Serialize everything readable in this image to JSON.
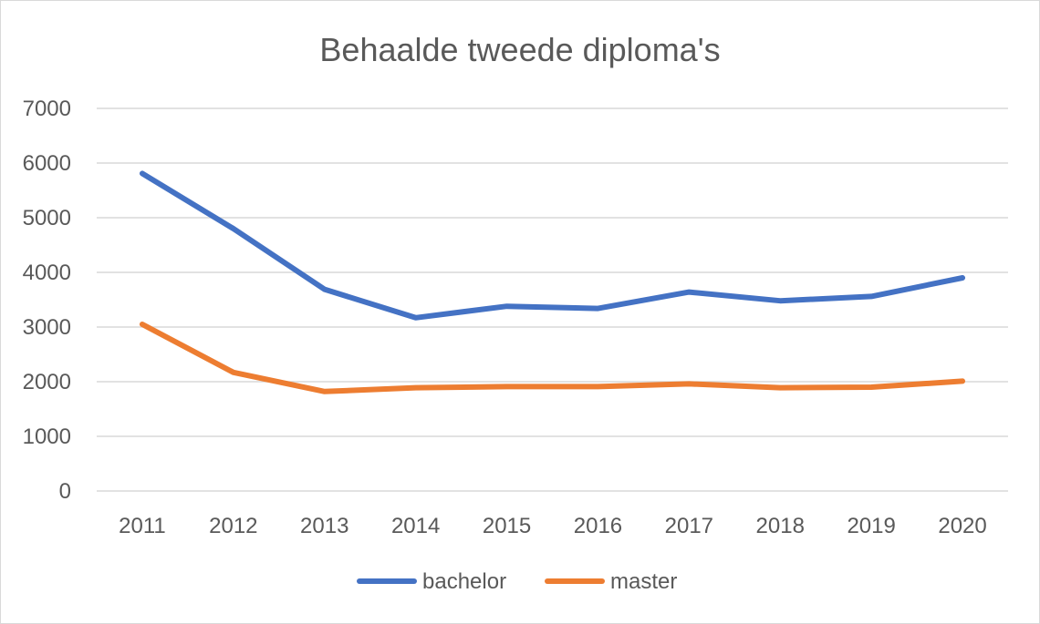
{
  "chart_data": {
    "type": "line",
    "title": "Behaalde tweede diploma's",
    "xlabel": "",
    "ylabel": "",
    "categories": [
      "2011",
      "2012",
      "2013",
      "2014",
      "2015",
      "2016",
      "2017",
      "2018",
      "2019",
      "2020"
    ],
    "yticks": [
      "0",
      "1000",
      "2000",
      "3000",
      "4000",
      "5000",
      "6000",
      "7000"
    ],
    "ylim": [
      0,
      7000
    ],
    "grid": true,
    "legend_position": "bottom",
    "series": [
      {
        "name": "bachelor",
        "color": "#4472c4",
        "values": [
          5810,
          4800,
          3690,
          3170,
          3380,
          3340,
          3640,
          3480,
          3560,
          3900
        ]
      },
      {
        "name": "master",
        "color": "#ed7d31",
        "values": [
          3050,
          2170,
          1820,
          1890,
          1910,
          1910,
          1960,
          1890,
          1900,
          2010
        ]
      }
    ]
  }
}
